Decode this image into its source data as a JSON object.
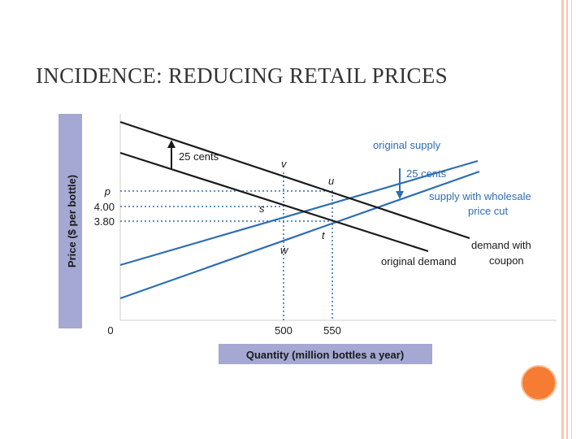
{
  "slide": {
    "title": "INCIDENCE: REDUCING RETAIL PRICES"
  },
  "colors": {
    "border": "#f6c6b2",
    "axis_band": "#a4a8d2",
    "supply": "#2e6db4",
    "demand": "#1a1a1a",
    "accent_dot": "#f57c32"
  },
  "chart_data": {
    "type": "line",
    "xlabel": "Quantity (million bottles a year)",
    "ylabel": "Price ($ per bottle)",
    "x_ticks": [
      "0",
      "500",
      "550"
    ],
    "y_ticks": [
      "p",
      "4.00",
      "3.80"
    ],
    "series": [
      {
        "name": "original supply",
        "color": "#2e6db4"
      },
      {
        "name": "supply with wholesale price cut",
        "color": "#2e6db4"
      },
      {
        "name": "demand with coupon",
        "color": "#1a1a1a"
      },
      {
        "name": "original demand",
        "color": "#1a1a1a"
      }
    ],
    "points": [
      {
        "label": "v",
        "quantity": 500
      },
      {
        "label": "u",
        "quantity": 550,
        "price": "p"
      },
      {
        "label": "s",
        "quantity": 500,
        "price": 4.0
      },
      {
        "label": "t",
        "quantity": 550,
        "price": 3.8
      },
      {
        "label": "w",
        "quantity": 500
      }
    ],
    "annotations": {
      "demand_shift": "25 cents",
      "supply_shift": "25 cents"
    },
    "labels": {
      "original_supply": "original supply",
      "supply_cut_line1": "supply with wholesale",
      "supply_cut_line2": "price cut",
      "demand_coupon_line1": "demand with",
      "demand_coupon_line2": "coupon",
      "original_demand": "original demand"
    }
  }
}
